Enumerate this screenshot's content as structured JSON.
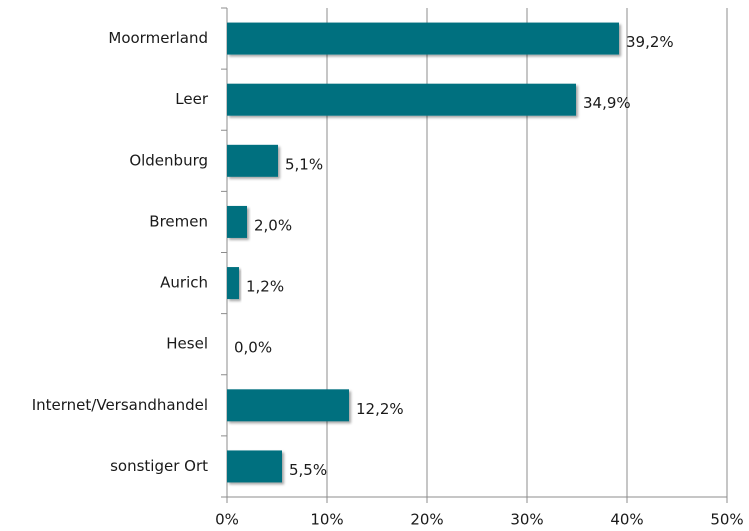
{
  "chart_data": {
    "type": "bar",
    "orientation": "horizontal",
    "categories": [
      "Moormerland",
      "Leer",
      "Oldenburg",
      "Bremen",
      "Aurich",
      "Hesel",
      "Internet/Versandhandel",
      "sonstiger Ort"
    ],
    "values": [
      39.2,
      34.9,
      5.1,
      2.0,
      1.2,
      0.0,
      12.2,
      5.5
    ],
    "value_labels": [
      "39,2%",
      "34,9%",
      "5,1%",
      "2,0%",
      "1,2%",
      "0,0%",
      "12,2%",
      "5,5%"
    ],
    "color": "#00707f",
    "xlim": [
      0,
      50
    ],
    "xticks": [
      {
        "value": 0,
        "label": "0%"
      },
      {
        "value": 10,
        "label": "10%"
      },
      {
        "value": 20,
        "label": "20%"
      },
      {
        "value": 30,
        "label": "30%"
      },
      {
        "value": 40,
        "label": "40%"
      },
      {
        "value": 50,
        "label": "50%"
      }
    ],
    "grid": true
  }
}
